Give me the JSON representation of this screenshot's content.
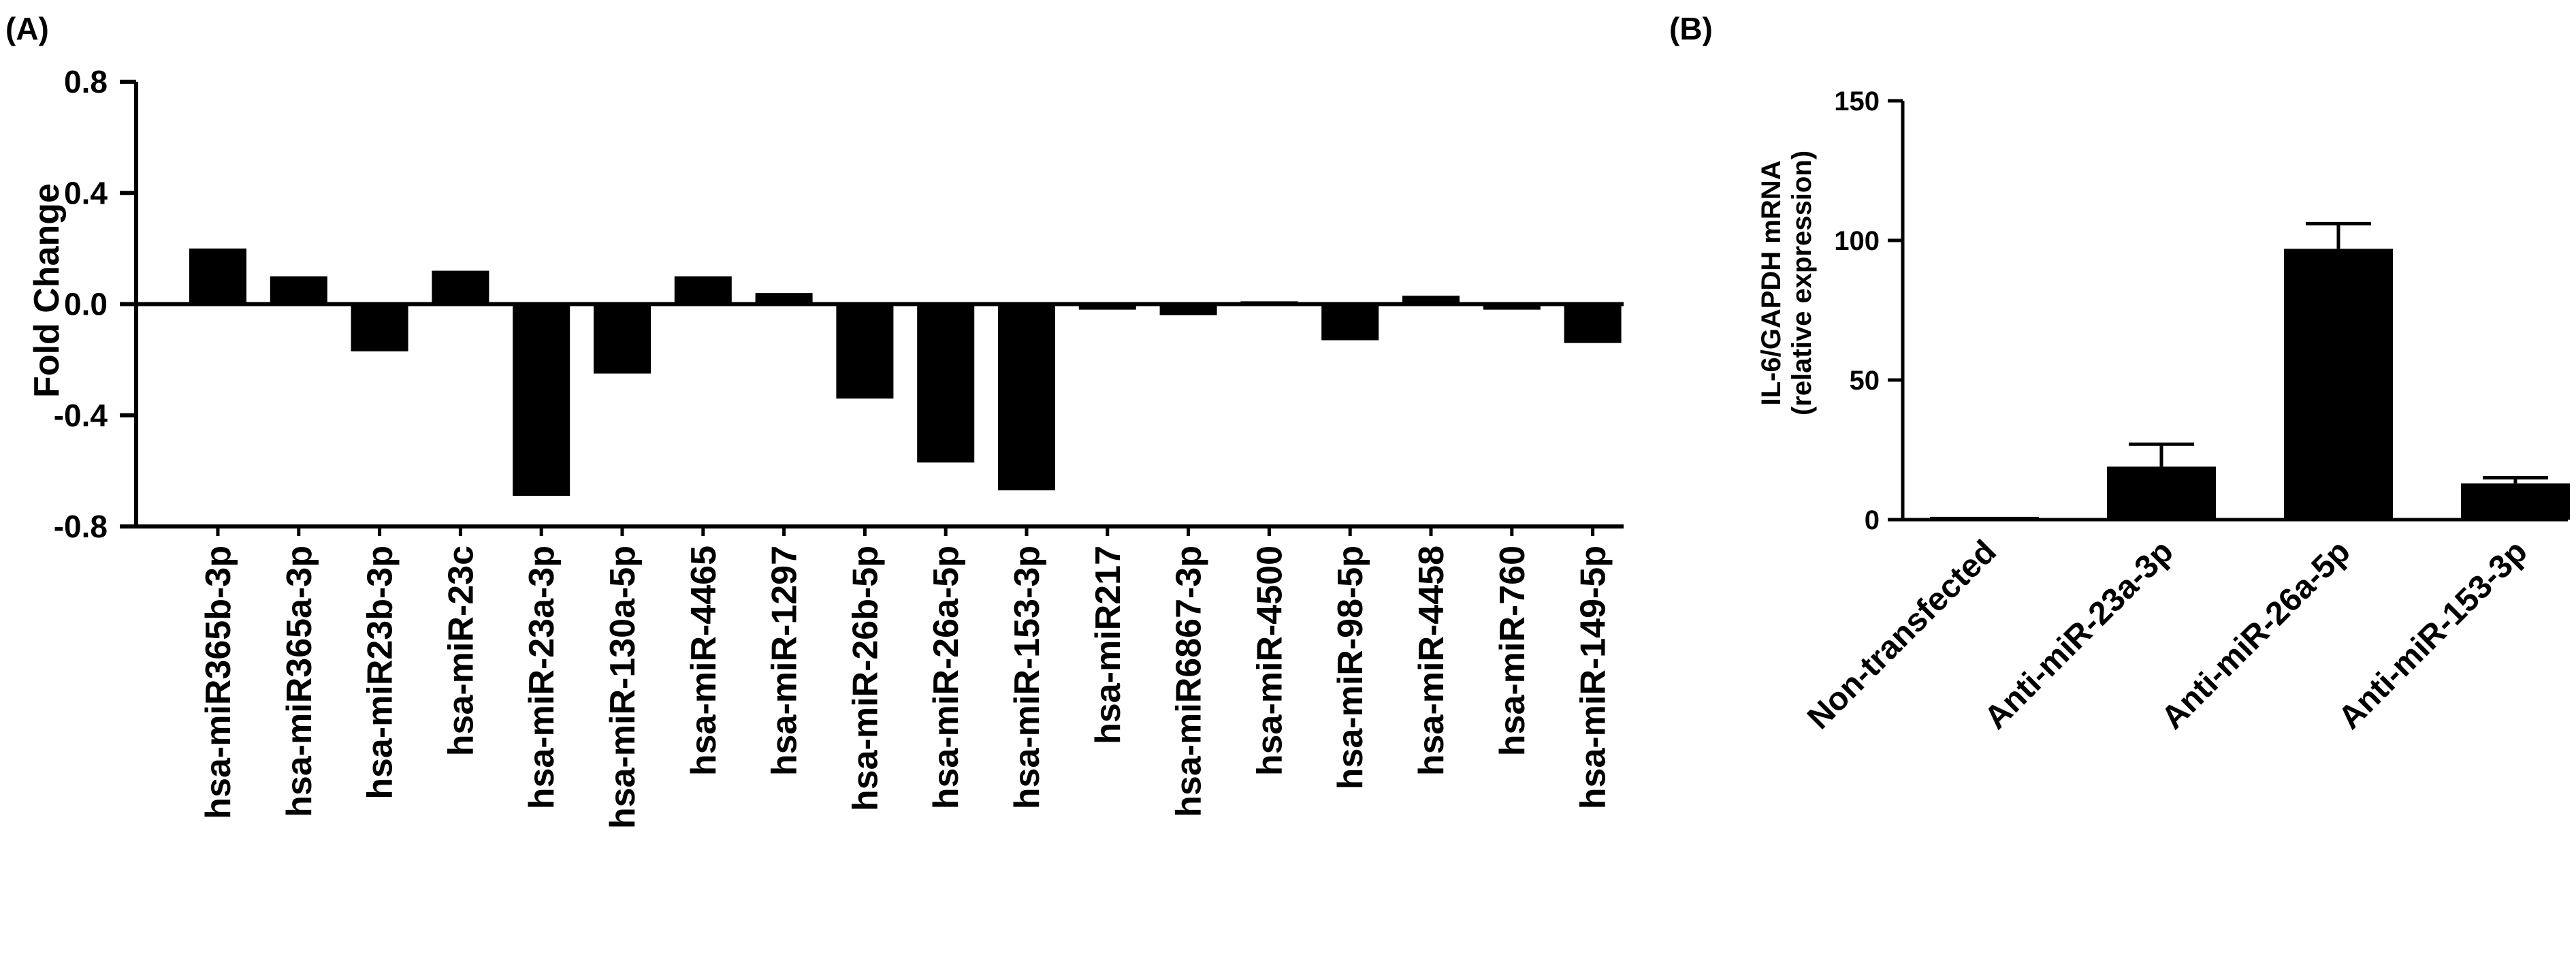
{
  "chart_data": [
    {
      "panel_label": "(A)",
      "type": "bar",
      "title": "",
      "xlabel": "",
      "ylabel": "Fold Change",
      "ylim": [
        -0.8,
        0.8
      ],
      "yticks": [
        0.8,
        0.4,
        0.0,
        -0.4,
        -0.8
      ],
      "ytick_labels": [
        "0.8",
        "0.4",
        "0.0",
        "-0.4",
        "-0.8"
      ],
      "grid": false,
      "bar_color": "#000000",
      "categories": [
        "hsa-miR365b-3p",
        "hsa-miR365a-3p",
        "hsa-miR23b-3p",
        "hsa-miR-23c",
        "hsa-miR-23a-3p",
        "hsa-miR-130a-5p",
        "hsa-miR-4465",
        "hsa-miR-1297",
        "hsa-miR-26b-5p",
        "hsa-miR-26a-5p",
        "hsa-miR-153-3p",
        "hsa-miR217",
        "hsa-miR6867-3p",
        "hsa-miR-4500",
        "hsa-miR-98-5p",
        "hsa-miR-4458",
        "hsa-miR-760",
        "hsa-miR-149-5p"
      ],
      "values": [
        0.2,
        0.1,
        -0.17,
        0.12,
        -0.69,
        -0.25,
        0.1,
        0.04,
        -0.34,
        -0.57,
        -0.67,
        -0.02,
        -0.04,
        0.01,
        -0.13,
        0.03,
        -0.02,
        -0.14
      ]
    },
    {
      "panel_label": "(B)",
      "type": "bar",
      "title": "",
      "xlabel": "",
      "ylabel_lines": [
        "IL-6/GAPDH mRNA",
        "(relative expression)"
      ],
      "ylim": [
        0,
        150
      ],
      "yticks": [
        0,
        50,
        100,
        150
      ],
      "ytick_labels": [
        "0",
        "50",
        "100",
        "150"
      ],
      "grid": false,
      "bar_color": "#000000",
      "categories": [
        "Non-transfected",
        "Anti-miR-23a-3p",
        "Anti-miR-26a-5p",
        "Anti-miR-153-3p"
      ],
      "values": [
        1,
        19,
        97,
        13
      ],
      "error_plus": [
        0,
        8,
        9,
        2
      ]
    }
  ]
}
